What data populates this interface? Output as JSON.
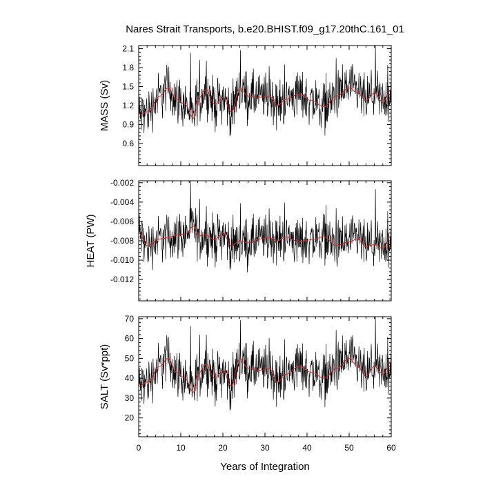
{
  "chart_data": {
    "title": "Nares Strait Transports, b.e20.BHIST.f09_g17.20thC.161_01",
    "xlabel": "Years of Integration",
    "x_ticks": [
      "0",
      "10",
      "20",
      "30",
      "40",
      "50",
      "60"
    ],
    "xlim": [
      0,
      60
    ],
    "monthly_step_years": 0.08333,
    "colors": {
      "raw": "#000000",
      "smoothed": "#e8231f"
    },
    "panels": [
      {
        "type": "line",
        "ylabel": "MASS (Sv)",
        "ylim": [
          0.25,
          2.15
        ],
        "y_ticks": [
          "0.6",
          "0.9",
          "1.2",
          "1.5",
          "1.8",
          "2.1"
        ],
        "y_tick_values": [
          0.6,
          0.9,
          1.2,
          1.5,
          1.8,
          2.1
        ],
        "anchor_x": [
          0,
          2,
          5,
          7,
          9,
          11,
          13,
          14,
          16,
          18,
          20,
          22,
          24,
          26,
          29,
          31,
          33,
          35,
          38,
          41,
          44,
          47,
          50,
          52,
          54,
          56,
          58,
          60
        ],
        "smooth_anchor_y": [
          1.05,
          1.1,
          1.35,
          1.48,
          1.3,
          1.22,
          1.0,
          1.3,
          1.45,
          1.22,
          1.33,
          1.1,
          1.48,
          1.35,
          1.33,
          1.35,
          1.2,
          1.3,
          1.38,
          1.28,
          1.18,
          1.35,
          1.48,
          1.4,
          1.28,
          1.4,
          1.25,
          1.45
        ],
        "noise_amplitude": 0.28,
        "series": [
          {
            "values": []
          }
        ]
      },
      {
        "type": "line",
        "ylabel": "HEAT (PW)",
        "ylim": [
          -0.0142,
          -0.0018
        ],
        "y_ticks": [
          "-0.012",
          "-0.010",
          "-0.008",
          "-0.006",
          "-0.004",
          "-0.002"
        ],
        "y_tick_values": [
          -0.012,
          -0.01,
          -0.008,
          -0.006,
          -0.004,
          -0.002
        ],
        "anchor_x": [
          0,
          2,
          5,
          7,
          9,
          11,
          13,
          14,
          16,
          18,
          20,
          22,
          24,
          26,
          29,
          31,
          33,
          35,
          38,
          41,
          44,
          47,
          50,
          52,
          54,
          56,
          58,
          60
        ],
        "smooth_anchor_y": [
          -0.0072,
          -0.0085,
          -0.0078,
          -0.0077,
          -0.0074,
          -0.0073,
          -0.0065,
          -0.0075,
          -0.0074,
          -0.0079,
          -0.0072,
          -0.0085,
          -0.008,
          -0.0082,
          -0.0078,
          -0.0077,
          -0.008,
          -0.0076,
          -0.0081,
          -0.0079,
          -0.0076,
          -0.0085,
          -0.0081,
          -0.0078,
          -0.0086,
          -0.0084,
          -0.0088,
          -0.0075
        ],
        "noise_amplitude": 0.0018,
        "series": [
          {
            "values": []
          }
        ]
      },
      {
        "type": "line",
        "ylabel": "SALT (Sv*ppt)",
        "ylim": [
          10.5,
          71
        ],
        "y_ticks": [
          "20",
          "30",
          "40",
          "50",
          "60",
          "70"
        ],
        "y_tick_values": [
          20,
          30,
          40,
          50,
          60,
          70
        ],
        "anchor_x": [
          0,
          2,
          5,
          7,
          9,
          11,
          13,
          14,
          16,
          18,
          20,
          22,
          24,
          26,
          29,
          31,
          33,
          35,
          38,
          41,
          44,
          47,
          50,
          52,
          54,
          56,
          58,
          60
        ],
        "smooth_anchor_y": [
          36,
          38,
          46,
          50,
          43,
          40,
          33,
          42,
          47,
          40,
          44,
          36,
          50,
          45,
          44,
          45,
          38,
          42,
          46,
          43,
          40,
          45,
          50,
          46,
          41,
          46,
          42,
          48
        ],
        "noise_amplitude": 9,
        "series": [
          {
            "values": []
          }
        ]
      }
    ]
  }
}
